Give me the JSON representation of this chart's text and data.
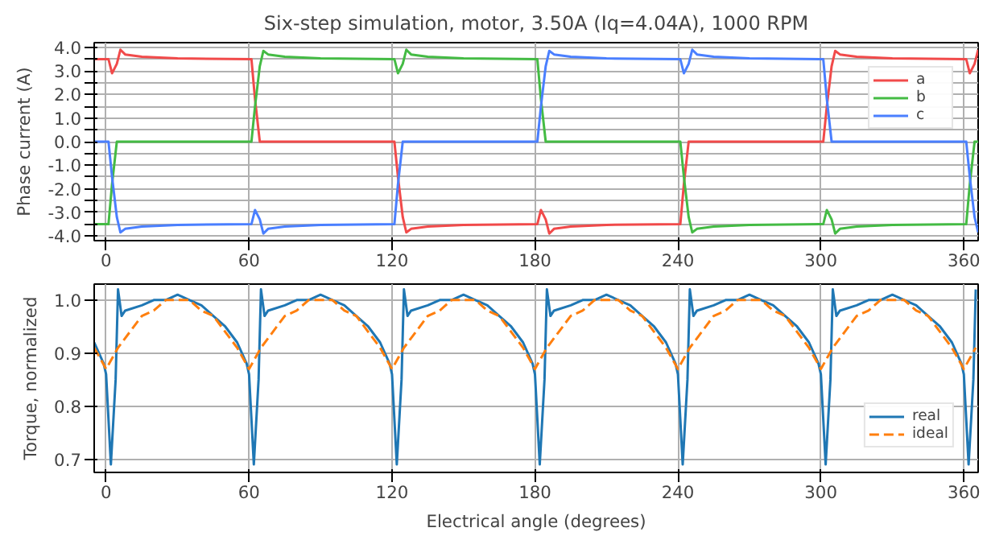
{
  "chart_data": [
    {
      "type": "line",
      "title": "Six-step simulation, motor, 3.50A (Iq=4.04A), 1000 RPM",
      "ylabel": "Phase current (A)",
      "x": [
        -5,
        1,
        2.5,
        4.5,
        6,
        8,
        15,
        30,
        61,
        62.5,
        64.5,
        66,
        68,
        75,
        90,
        121,
        122.5,
        124.5,
        126,
        128,
        135,
        150,
        181,
        182.5,
        184.5,
        186,
        188,
        195,
        210,
        241,
        242.5,
        244.5,
        246,
        248,
        255,
        270,
        301,
        302.5,
        304.5,
        306,
        308,
        315,
        330,
        361,
        362.5,
        364.5,
        366
      ],
      "series": [
        {
          "name": "a",
          "color": "#f14a4a",
          "values": [
            3.5,
            3.5,
            2.9,
            3.3,
            3.9,
            3.7,
            3.6,
            3.53,
            3.5,
            1.8,
            0,
            0,
            0,
            0,
            0,
            0,
            -1.5,
            -3.2,
            -3.85,
            -3.7,
            -3.6,
            -3.53,
            -3.5,
            -2.9,
            -3.3,
            -3.9,
            -3.7,
            -3.6,
            -3.53,
            -3.5,
            -1.8,
            0,
            0,
            0,
            0,
            0,
            0,
            1.5,
            3.2,
            3.85,
            3.7,
            3.6,
            3.53,
            3.5,
            2.9,
            3.3,
            3.9
          ]
        },
        {
          "name": "b",
          "color": "#44bb44",
          "values": [
            -3.5,
            -3.5,
            -1.8,
            0,
            0,
            0,
            0,
            0,
            0,
            1.5,
            3.2,
            3.85,
            3.7,
            3.6,
            3.53,
            3.5,
            2.9,
            3.3,
            3.9,
            3.7,
            3.6,
            3.53,
            3.5,
            1.8,
            0,
            0,
            0,
            0,
            0,
            0,
            -1.5,
            -3.2,
            -3.85,
            -3.7,
            -3.6,
            -3.53,
            -3.5,
            -2.9,
            -3.3,
            -3.9,
            -3.7,
            -3.6,
            -3.53,
            -3.5,
            -1.8,
            0,
            0
          ]
        },
        {
          "name": "c",
          "color": "#4a7fff",
          "values": [
            0,
            0,
            -1.5,
            -3.2,
            -3.85,
            -3.7,
            -3.6,
            -3.53,
            -3.5,
            -2.9,
            -3.3,
            -3.9,
            -3.7,
            -3.6,
            -3.53,
            -3.5,
            -1.8,
            0,
            0,
            0,
            0,
            0,
            0,
            1.5,
            3.2,
            3.85,
            3.7,
            3.6,
            3.53,
            3.5,
            2.9,
            3.3,
            3.9,
            3.7,
            3.6,
            3.53,
            3.5,
            1.8,
            0,
            0,
            0,
            0,
            0,
            0,
            -1.5,
            -3.2,
            -3.85
          ]
        }
      ],
      "xlim": [
        -5,
        366
      ],
      "xticks": [
        0,
        60,
        120,
        180,
        240,
        300,
        360
      ],
      "ylim": [
        -4.2,
        4.2
      ],
      "yticks": [
        {
          "value": -4,
          "label": "-4.0"
        },
        {
          "value": -3.5,
          "label": null
        },
        {
          "value": -3,
          "label": "-3.0"
        },
        {
          "value": -2.5,
          "label": null
        },
        {
          "value": -2,
          "label": "-2.0"
        },
        {
          "value": -1.5,
          "label": null
        },
        {
          "value": -1,
          "label": "-1.0"
        },
        {
          "value": -0.5,
          "label": null
        },
        {
          "value": 0,
          "label": "0.0"
        },
        {
          "value": 0.5,
          "label": null
        },
        {
          "value": 1,
          "label": "1.0"
        },
        {
          "value": 1.5,
          "label": null
        },
        {
          "value": 2,
          "label": "2.0"
        },
        {
          "value": 2.5,
          "label": null
        },
        {
          "value": 3,
          "label": "3.0"
        },
        {
          "value": 3.5,
          "label": null
        },
        {
          "value": 4,
          "label": "4.0"
        }
      ],
      "grid": true,
      "legend": "top right"
    },
    {
      "type": "line",
      "xlabel": "Electrical angle (degrees)",
      "ylabel": "Torque, normalized",
      "series": [
        {
          "name": "real",
          "color": "#1f77b4",
          "x": [
            -5,
            -1,
            0,
            2,
            4,
            5,
            6.5,
            8,
            15,
            20,
            25,
            30,
            35,
            40,
            45,
            50,
            55,
            59,
            60,
            62,
            64,
            65,
            66.5,
            68,
            75,
            80,
            85,
            90,
            95,
            100,
            105,
            110,
            115,
            119,
            120,
            122,
            124,
            125,
            126.5,
            128,
            135,
            140,
            145,
            150,
            155,
            160,
            165,
            170,
            175,
            179,
            180,
            182,
            184,
            185,
            186.5,
            188,
            195,
            200,
            205,
            210,
            215,
            220,
            225,
            230,
            235,
            239,
            240,
            242,
            244,
            245,
            246.5,
            248,
            255,
            260,
            265,
            270,
            275,
            280,
            285,
            290,
            295,
            299,
            300,
            302,
            304,
            305,
            306.5,
            308,
            315,
            320,
            325,
            330,
            335,
            340,
            345,
            350,
            355,
            359,
            360,
            362,
            364,
            365
          ],
          "values": [
            0.92,
            0.88,
            0.86,
            0.69,
            0.85,
            1.02,
            0.97,
            0.98,
            0.99,
            1.0,
            1.0,
            1.01,
            1.0,
            0.99,
            0.97,
            0.95,
            0.92,
            0.88,
            0.86,
            0.69,
            0.85,
            1.02,
            0.97,
            0.98,
            0.99,
            1.0,
            1.0,
            1.01,
            1.0,
            0.99,
            0.97,
            0.95,
            0.92,
            0.88,
            0.86,
            0.69,
            0.85,
            1.02,
            0.97,
            0.98,
            0.99,
            1.0,
            1.0,
            1.01,
            1.0,
            0.99,
            0.97,
            0.95,
            0.92,
            0.88,
            0.86,
            0.69,
            0.85,
            1.02,
            0.97,
            0.98,
            0.99,
            1.0,
            1.0,
            1.01,
            1.0,
            0.99,
            0.97,
            0.95,
            0.92,
            0.88,
            0.86,
            0.69,
            0.85,
            1.02,
            0.97,
            0.98,
            0.99,
            1.0,
            1.0,
            1.01,
            1.0,
            0.99,
            0.97,
            0.95,
            0.92,
            0.88,
            0.86,
            0.69,
            0.85,
            1.02,
            0.97,
            0.98,
            0.99,
            1.0,
            1.0,
            1.01,
            1.0,
            0.99,
            0.97,
            0.95,
            0.92,
            0.88,
            0.86,
            0.69,
            0.85,
            1.02
          ]
        },
        {
          "name": "ideal",
          "color": "#ff7f0e",
          "line_style": "dashed",
          "x": [
            -5,
            0,
            5,
            10,
            15,
            20,
            25,
            30,
            35,
            40,
            45,
            50,
            55,
            60,
            65,
            70,
            75,
            80,
            85,
            90,
            95,
            100,
            105,
            110,
            115,
            120,
            125,
            130,
            135,
            140,
            145,
            150,
            155,
            160,
            165,
            170,
            175,
            180,
            185,
            190,
            195,
            200,
            205,
            210,
            215,
            220,
            225,
            230,
            235,
            240,
            245,
            250,
            255,
            260,
            265,
            270,
            275,
            280,
            285,
            290,
            295,
            300,
            305,
            310,
            315,
            320,
            325,
            330,
            335,
            340,
            345,
            350,
            355,
            360,
            365
          ],
          "values": [
            0.91,
            0.87,
            0.91,
            0.94,
            0.97,
            0.98,
            1.0,
            1.0,
            1.0,
            0.98,
            0.97,
            0.94,
            0.91,
            0.87,
            0.91,
            0.94,
            0.97,
            0.98,
            1.0,
            1.0,
            1.0,
            0.98,
            0.97,
            0.94,
            0.91,
            0.87,
            0.91,
            0.94,
            0.97,
            0.98,
            1.0,
            1.0,
            1.0,
            0.98,
            0.97,
            0.94,
            0.91,
            0.87,
            0.91,
            0.94,
            0.97,
            0.98,
            1.0,
            1.0,
            1.0,
            0.98,
            0.97,
            0.94,
            0.91,
            0.87,
            0.91,
            0.94,
            0.97,
            0.98,
            1.0,
            1.0,
            1.0,
            0.98,
            0.97,
            0.94,
            0.91,
            0.87,
            0.91,
            0.94,
            0.97,
            0.98,
            1.0,
            1.0,
            1.0,
            0.98,
            0.97,
            0.94,
            0.91,
            0.87,
            0.91
          ]
        }
      ],
      "xlim": [
        -5,
        366
      ],
      "xticks": [
        0,
        60,
        120,
        180,
        240,
        300,
        360
      ],
      "ylim": [
        0.675,
        1.03
      ],
      "yticks": [
        0.7,
        0.8,
        0.9,
        {
          "value": 1.0,
          "label": "1.0"
        }
      ],
      "grid": true,
      "legend": "bottom right"
    }
  ]
}
